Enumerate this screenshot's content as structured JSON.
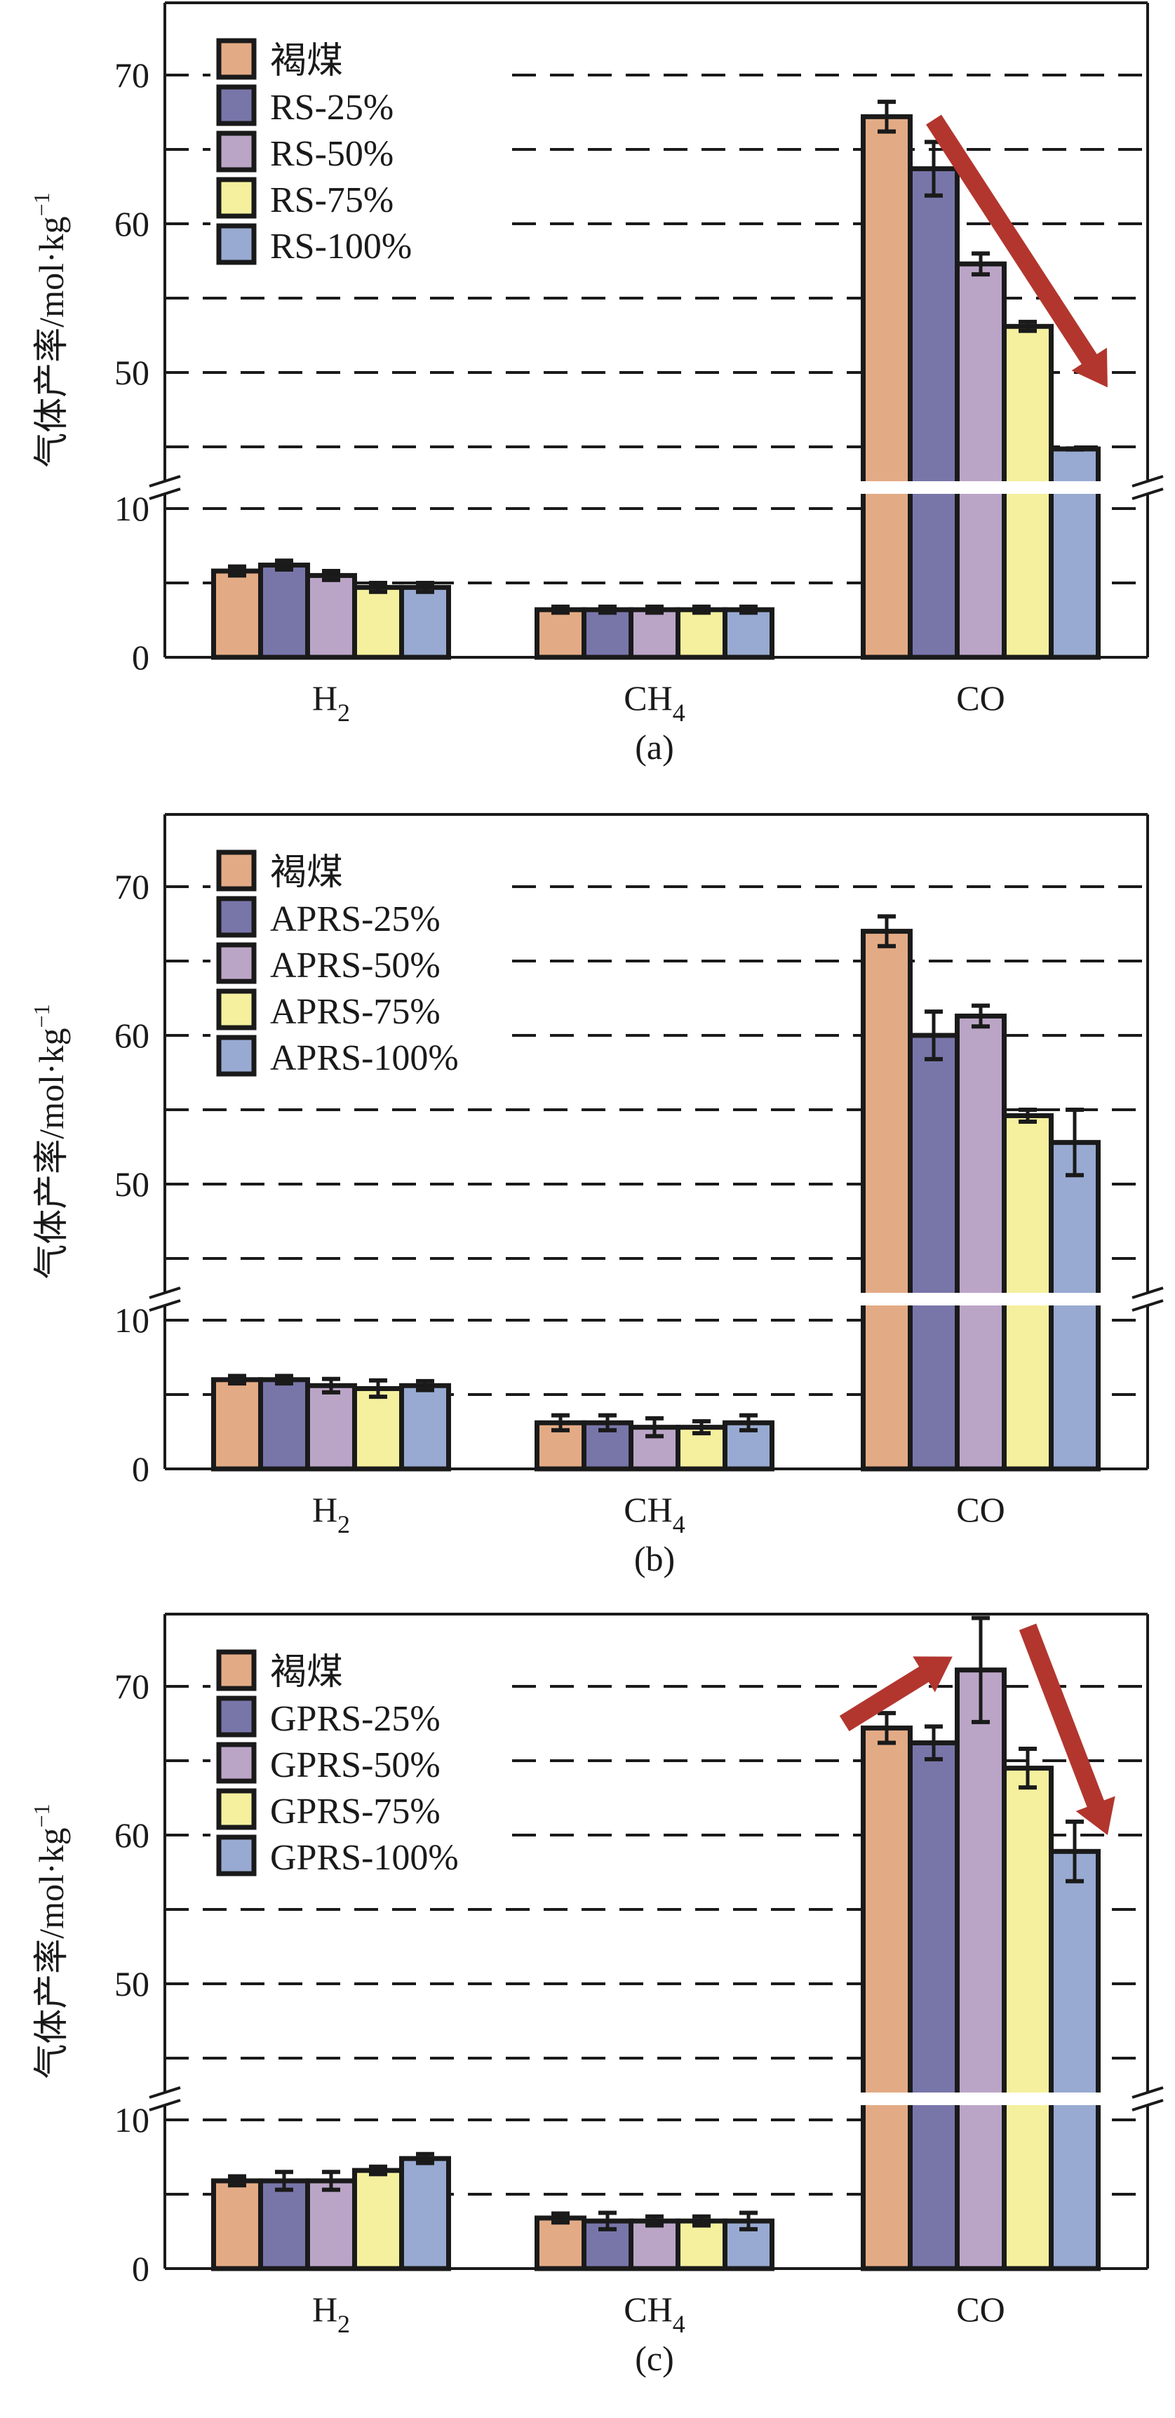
{
  "figure": {
    "panels_count": 3
  },
  "chart_data": [
    {
      "type": "bar",
      "panel_label": "(a)",
      "title": "",
      "xlabel": "",
      "ylabel": "气体产率/mol·kg⁻¹",
      "ylabel_main": "气体产率/mol·kg",
      "ylabel_sup": "−1",
      "categories": [
        "H2",
        "CH4",
        "CO"
      ],
      "category_labels": [
        {
          "base": "H",
          "sub": "2"
        },
        {
          "base": "CH",
          "sub": "4"
        },
        {
          "base": "CO",
          "sub": ""
        }
      ],
      "y_axis": {
        "broken": true,
        "lower_range": [
          0,
          10
        ],
        "upper_range": [
          45,
          75
        ],
        "ticks": [
          0,
          10,
          50,
          60,
          70
        ],
        "tick_labels": [
          "0",
          "10",
          "50",
          "60",
          "70"
        ],
        "gridlines_dashed": [
          5,
          10,
          45,
          50,
          55,
          60,
          65,
          70
        ]
      },
      "grid": true,
      "legend_position": "top-left",
      "series": [
        {
          "name": "褐煤",
          "color": "#E3AB85",
          "values": [
            5.8,
            3.2,
            67.2
          ],
          "errors": [
            0.3,
            0.2,
            1.0
          ]
        },
        {
          "name": "RS-25%",
          "color": "#7876A9",
          "values": [
            6.2,
            3.2,
            63.7
          ],
          "errors": [
            0.3,
            0.2,
            1.8
          ]
        },
        {
          "name": "RS-50%",
          "color": "#BBA5C7",
          "values": [
            5.5,
            3.2,
            57.3
          ],
          "errors": [
            0.3,
            0.2,
            0.7
          ]
        },
        {
          "name": "RS-75%",
          "color": "#F4F09E",
          "values": [
            4.7,
            3.2,
            53.1
          ],
          "errors": [
            0.3,
            0.2,
            0.3
          ]
        },
        {
          "name": "RS-100%",
          "color": "#98AAD1",
          "values": [
            4.7,
            3.2,
            43.8
          ],
          "errors": [
            0.3,
            0.2,
            0.3
          ]
        }
      ],
      "annotations": [
        {
          "type": "arrow",
          "meaning": "decreasing trend",
          "color": "#B2362E",
          "from": {
            "category": "CO",
            "series_index": 1,
            "y": 67
          },
          "to": {
            "category": "CO",
            "series_index": 5,
            "y": 49
          }
        }
      ]
    },
    {
      "type": "bar",
      "panel_label": "(b)",
      "title": "",
      "xlabel": "",
      "ylabel": "气体产率/mol·kg⁻¹",
      "ylabel_main": "气体产率/mol·kg",
      "ylabel_sup": "−1",
      "categories": [
        "H2",
        "CH4",
        "CO"
      ],
      "category_labels": [
        {
          "base": "H",
          "sub": "2"
        },
        {
          "base": "CH",
          "sub": "4"
        },
        {
          "base": "CO",
          "sub": ""
        }
      ],
      "y_axis": {
        "broken": true,
        "lower_range": [
          0,
          10
        ],
        "upper_range": [
          45,
          75
        ],
        "ticks": [
          0,
          10,
          50,
          60,
          70
        ],
        "tick_labels": [
          "0",
          "10",
          "50",
          "60",
          "70"
        ],
        "gridlines_dashed": [
          5,
          10,
          45,
          50,
          55,
          60,
          65,
          70
        ]
      },
      "grid": true,
      "legend_position": "top-left",
      "series": [
        {
          "name": "褐煤",
          "color": "#E3AB85",
          "values": [
            6.0,
            3.1,
            67.0
          ],
          "errors": [
            0.25,
            0.5,
            1.0
          ]
        },
        {
          "name": "APRS-25%",
          "color": "#7876A9",
          "values": [
            6.0,
            3.1,
            60.0
          ],
          "errors": [
            0.25,
            0.5,
            1.6
          ]
        },
        {
          "name": "APRS-50%",
          "color": "#BBA5C7",
          "values": [
            5.6,
            2.8,
            61.3
          ],
          "errors": [
            0.45,
            0.6,
            0.7
          ]
        },
        {
          "name": "APRS-75%",
          "color": "#F4F09E",
          "values": [
            5.4,
            2.8,
            54.6
          ],
          "errors": [
            0.55,
            0.4,
            0.4
          ]
        },
        {
          "name": "APRS-100%",
          "color": "#98AAD1",
          "values": [
            5.6,
            3.1,
            52.8
          ],
          "errors": [
            0.3,
            0.5,
            2.2
          ]
        }
      ],
      "annotations": []
    },
    {
      "type": "bar",
      "panel_label": "(c)",
      "title": "",
      "xlabel": "",
      "ylabel": "气体产率/mol·kg⁻¹",
      "ylabel_main": "气体产率/mol·kg",
      "ylabel_sup": "−1",
      "categories": [
        "H2",
        "CH4",
        "CO"
      ],
      "category_labels": [
        {
          "base": "H",
          "sub": "2"
        },
        {
          "base": "CH",
          "sub": "4"
        },
        {
          "base": "CO",
          "sub": ""
        }
      ],
      "y_axis": {
        "broken": true,
        "lower_range": [
          0,
          10
        ],
        "upper_range": [
          45,
          75
        ],
        "ticks": [
          0,
          10,
          50,
          60,
          70
        ],
        "tick_labels": [
          "0",
          "10",
          "50",
          "60",
          "70"
        ],
        "gridlines_dashed": [
          5,
          10,
          45,
          50,
          55,
          60,
          65,
          70
        ]
      },
      "grid": true,
      "legend_position": "top-left",
      "series": [
        {
          "name": "褐煤",
          "color": "#E3AB85",
          "values": [
            5.9,
            3.4,
            67.2
          ],
          "errors": [
            0.3,
            0.3,
            1.0
          ]
        },
        {
          "name": "GPRS-25%",
          "color": "#7876A9",
          "values": [
            5.9,
            3.2,
            66.2
          ],
          "errors": [
            0.6,
            0.55,
            1.1
          ]
        },
        {
          "name": "GPRS-50%",
          "color": "#BBA5C7",
          "values": [
            5.9,
            3.2,
            71.1
          ],
          "errors": [
            0.6,
            0.3,
            3.5
          ]
        },
        {
          "name": "GPRS-75%",
          "color": "#F4F09E",
          "values": [
            6.6,
            3.2,
            64.5
          ],
          "errors": [
            0.25,
            0.3,
            1.3
          ]
        },
        {
          "name": "GPRS-100%",
          "color": "#98AAD1",
          "values": [
            7.4,
            3.2,
            58.9
          ],
          "errors": [
            0.3,
            0.55,
            2.0
          ]
        }
      ],
      "annotations": [
        {
          "type": "arrow",
          "meaning": "increasing trend",
          "color": "#B2362E",
          "from": {
            "category": "CO",
            "series_index": 0,
            "y": 67.5
          },
          "to": {
            "category": "CO",
            "series_index": 2,
            "y": 72
          }
        },
        {
          "type": "arrow",
          "meaning": "decreasing trend",
          "color": "#B2362E",
          "from": {
            "category": "CO",
            "series_index": 3,
            "y": 74
          },
          "to": {
            "category": "CO",
            "series_index": 5,
            "y": 60
          }
        }
      ]
    }
  ]
}
